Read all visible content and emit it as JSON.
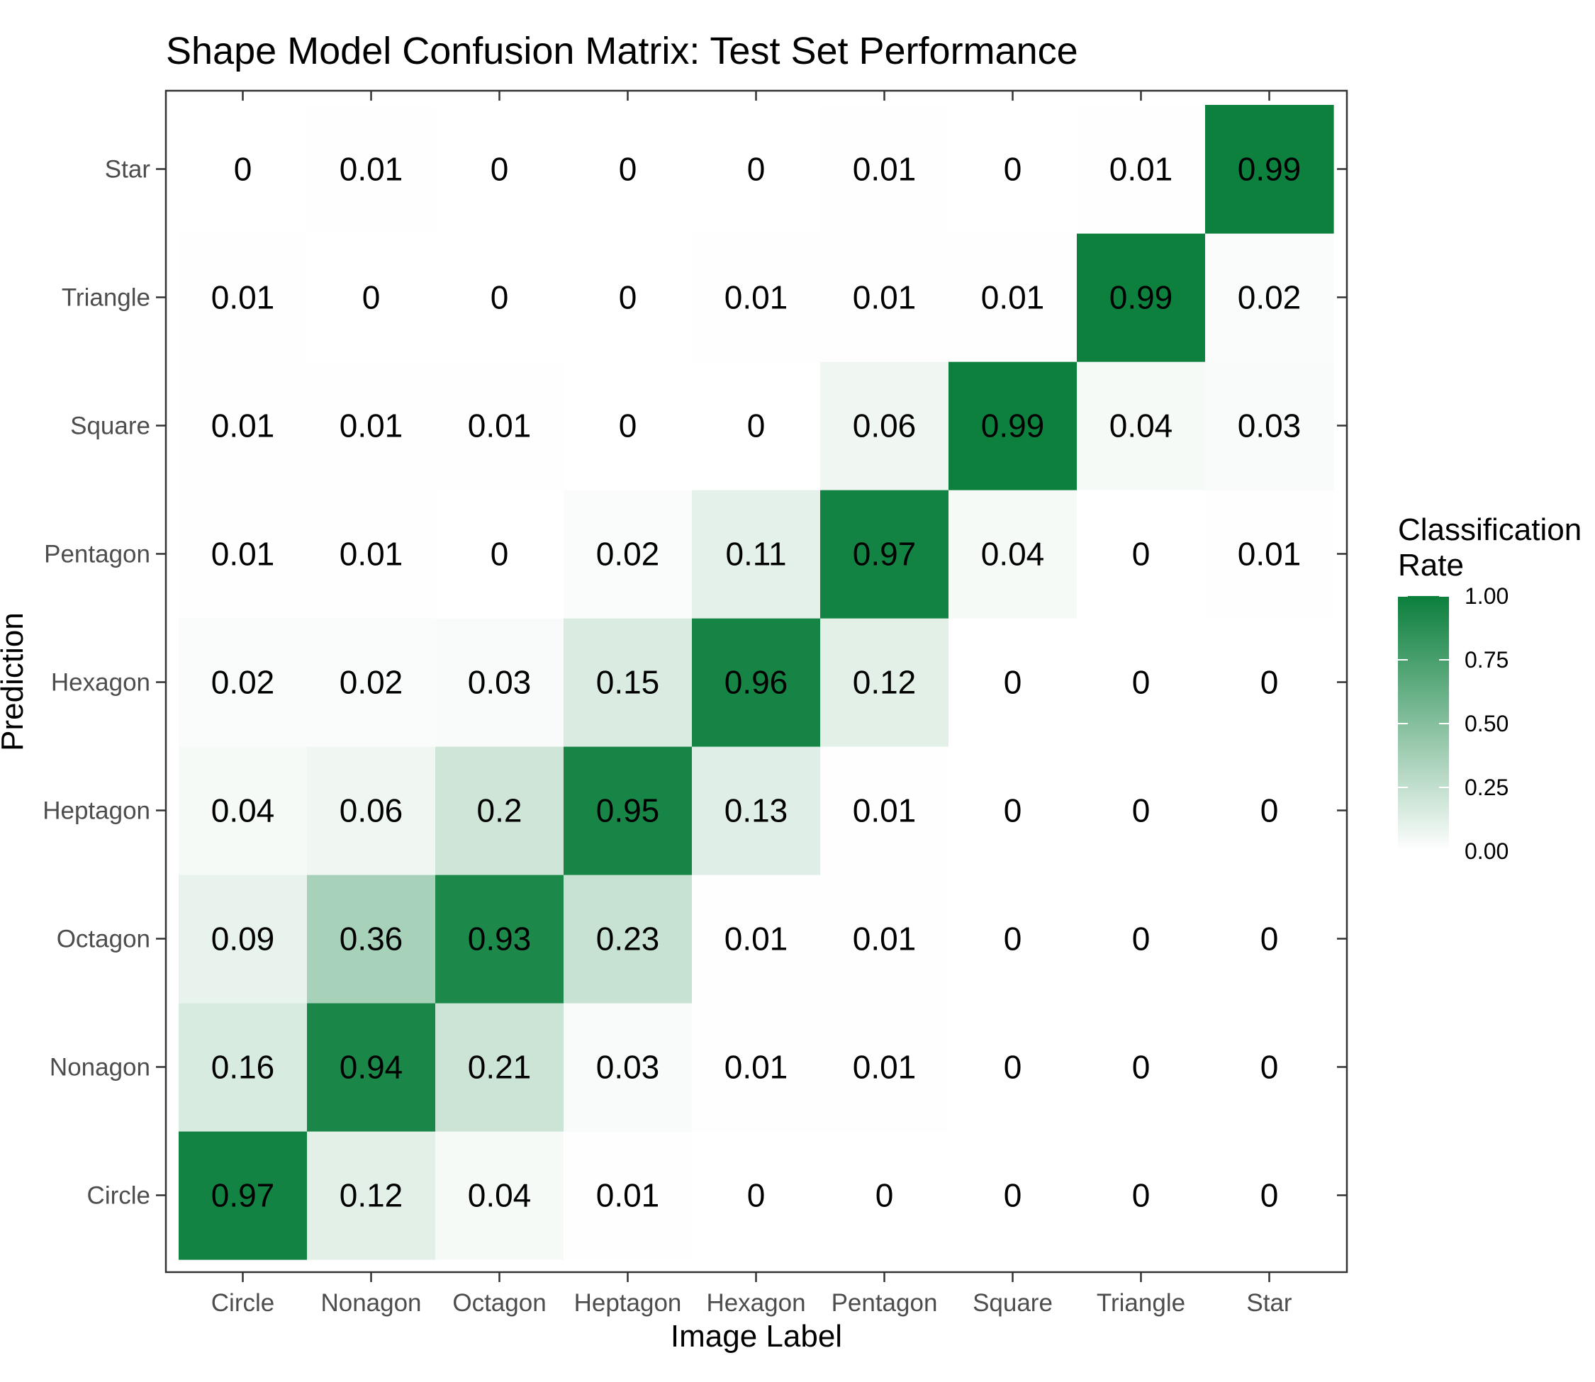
{
  "chart_data": {
    "type": "heatmap",
    "title": "Shape Model Confusion Matrix: Test Set Performance",
    "xlabel": "Image Label",
    "ylabel": "Prediction",
    "x_categories": [
      "Circle",
      "Nonagon",
      "Octagon",
      "Heptagon",
      "Hexagon",
      "Pentagon",
      "Square",
      "Triangle",
      "Star"
    ],
    "y_categories": [
      "Circle",
      "Nonagon",
      "Octagon",
      "Heptagon",
      "Hexagon",
      "Pentagon",
      "Square",
      "Triangle",
      "Star"
    ],
    "values": [
      [
        0.97,
        0.12,
        0.04,
        0.01,
        0,
        0,
        0,
        0,
        0
      ],
      [
        0.16,
        0.94,
        0.21,
        0.03,
        0.01,
        0.01,
        0,
        0,
        0
      ],
      [
        0.09,
        0.36,
        0.93,
        0.23,
        0.01,
        0.01,
        0,
        0,
        0
      ],
      [
        0.04,
        0.06,
        0.2,
        0.95,
        0.13,
        0.01,
        0,
        0,
        0
      ],
      [
        0.02,
        0.02,
        0.03,
        0.15,
        0.96,
        0.12,
        0,
        0,
        0
      ],
      [
        0.01,
        0.01,
        0,
        0.02,
        0.11,
        0.97,
        0.04,
        0,
        0.01
      ],
      [
        0.01,
        0.01,
        0.01,
        0,
        0,
        0.06,
        0.99,
        0.04,
        0.03
      ],
      [
        0.01,
        0,
        0,
        0,
        0.01,
        0.01,
        0.01,
        0.99,
        0.02
      ],
      [
        0,
        0.01,
        0,
        0,
        0,
        0.01,
        0,
        0.01,
        0.99
      ]
    ],
    "values_orientation": "rows are Prediction (bottom to top), columns are Image Label (left to right)",
    "color_scale": {
      "low": "#ffffff",
      "high": "#0b7f3c",
      "range": [
        0,
        1
      ]
    },
    "legend": {
      "title_lines": [
        "Classification",
        "Rate"
      ],
      "ticks": [
        "0.00",
        "0.25",
        "0.50",
        "0.75",
        "1.00"
      ],
      "placement": "right"
    },
    "grid": false
  }
}
